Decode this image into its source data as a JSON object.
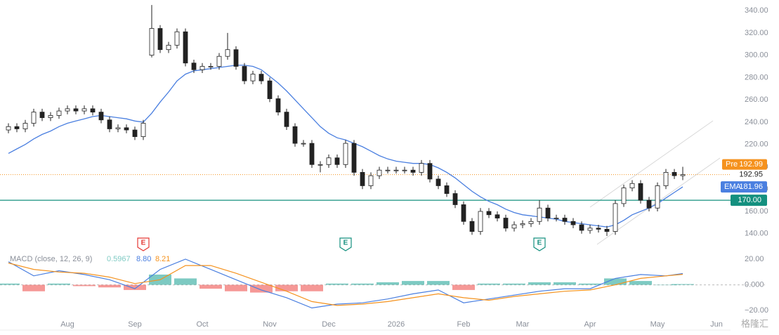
{
  "chart_data": [
    {
      "type": "candlestick",
      "x": [
        0,
        1,
        2,
        3,
        4,
        5,
        6,
        7,
        8,
        9,
        10,
        11,
        12,
        13,
        14,
        15,
        16,
        17,
        18,
        19,
        20,
        21,
        22,
        23,
        24,
        25,
        26,
        27,
        28,
        29,
        30,
        31,
        32,
        33,
        34,
        35,
        36,
        37,
        38,
        39,
        40,
        41,
        42,
        43,
        44,
        45,
        46,
        47,
        48,
        49,
        50,
        51,
        52,
        53,
        54,
        55,
        56,
        57,
        58,
        59,
        60,
        61,
        62,
        63,
        64,
        65,
        66,
        67,
        68,
        69,
        70,
        71,
        72,
        73,
        74,
        75,
        76,
        77,
        78,
        79,
        80
      ],
      "open": [
        233,
        236,
        234,
        239,
        249,
        244,
        246,
        250,
        252,
        250,
        252,
        249,
        242,
        234,
        235,
        233,
        227,
        300,
        324,
        305,
        309,
        321,
        293,
        287,
        290,
        290,
        299,
        305,
        290,
        277,
        283,
        277,
        261,
        249,
        236,
        221,
        221,
        202,
        202,
        208,
        202,
        221,
        195,
        183,
        192,
        197,
        197,
        197,
        197,
        195,
        203,
        189,
        183,
        176,
        166,
        151,
        142,
        160,
        157,
        154,
        145,
        148,
        149,
        151,
        163,
        154,
        154,
        151,
        148,
        143,
        145,
        144,
        142,
        167,
        181,
        185,
        170,
        163,
        183,
        195,
        192
      ],
      "high": [
        239,
        239,
        242,
        252,
        252,
        249,
        253,
        255,
        255,
        255,
        255,
        252,
        245,
        238,
        238,
        236,
        242,
        345,
        327,
        312,
        324,
        324,
        296,
        293,
        293,
        302,
        320,
        308,
        293,
        286,
        286,
        280,
        264,
        252,
        239,
        224,
        224,
        205,
        211,
        211,
        224,
        224,
        198,
        195,
        200,
        200,
        200,
        200,
        200,
        206,
        206,
        192,
        186,
        179,
        169,
        154,
        163,
        163,
        160,
        157,
        151,
        152,
        154,
        170,
        166,
        157,
        157,
        154,
        151,
        148,
        148,
        147,
        170,
        184,
        188,
        188,
        173,
        186,
        198,
        198,
        200
      ],
      "low": [
        230,
        231,
        231,
        236,
        241,
        241,
        243,
        247,
        247,
        247,
        246,
        239,
        231,
        231,
        230,
        224,
        224,
        298,
        302,
        302,
        306,
        290,
        284,
        284,
        287,
        287,
        296,
        287,
        274,
        274,
        274,
        258,
        246,
        233,
        218,
        218,
        199,
        195,
        199,
        199,
        199,
        192,
        180,
        180,
        189,
        194,
        194,
        194,
        192,
        192,
        186,
        180,
        173,
        163,
        148,
        139,
        139,
        154,
        151,
        142,
        142,
        145,
        146,
        148,
        151,
        151,
        148,
        145,
        140,
        140,
        141,
        138,
        139,
        164,
        178,
        167,
        160,
        160,
        180,
        189,
        188
      ],
      "close": [
        236,
        234,
        239,
        249,
        244,
        246,
        250,
        252,
        250,
        252,
        249,
        242,
        234,
        235,
        233,
        227,
        239,
        324,
        305,
        309,
        321,
        293,
        287,
        290,
        290,
        299,
        305,
        290,
        277,
        283,
        277,
        261,
        249,
        236,
        221,
        221,
        202,
        202,
        208,
        202,
        221,
        195,
        183,
        192,
        197,
        197,
        197,
        197,
        195,
        203,
        189,
        183,
        176,
        166,
        151,
        142,
        160,
        157,
        154,
        145,
        148,
        149,
        151,
        163,
        154,
        154,
        151,
        148,
        143,
        145,
        144,
        142,
        167,
        181,
        185,
        170,
        163,
        183,
        195,
        192,
        192.95
      ],
      "up_color": "#ffffff",
      "down_color": "#222222",
      "ema": {
        "name": "EMA",
        "color": "#4a7fe0",
        "values": [
          212,
          216,
          220,
          225,
          229,
          232,
          236,
          239,
          241,
          243,
          245,
          246,
          245,
          244,
          243,
          241,
          240,
          248,
          258,
          267,
          277,
          283,
          286,
          287,
          288,
          289,
          290,
          291,
          291,
          290,
          287,
          281,
          275,
          268,
          260,
          252,
          244,
          236,
          230,
          226,
          224,
          221,
          218,
          214,
          210,
          207,
          205,
          204,
          203,
          203,
          202,
          199,
          195,
          190,
          184,
          178,
          173,
          169,
          166,
          162,
          159,
          157,
          156,
          155,
          154,
          153,
          151,
          150,
          149,
          148,
          147,
          146,
          148,
          152,
          157,
          160,
          163,
          167,
          172,
          177,
          181.96
        ]
      },
      "pre": {
        "name": "Pre",
        "value": 192.99,
        "color": "#f5921e"
      },
      "level": {
        "value": 170,
        "label": "170.00",
        "color": "#14907f"
      },
      "events": [
        {
          "x": 16,
          "label": "E",
          "color": "#e53935"
        },
        {
          "x": 40,
          "label": "E",
          "color": "#14907f"
        },
        {
          "x": 63,
          "label": "E",
          "color": "#14907f"
        }
      ],
      "xlim": [
        -1,
        86.5
      ],
      "xticks": [
        {
          "value": 7,
          "label": "Aug"
        },
        {
          "value": 15,
          "label": "Sep"
        },
        {
          "value": 23,
          "label": "Oct"
        },
        {
          "value": 31,
          "label": "Nov"
        },
        {
          "value": 38,
          "label": "Dec"
        },
        {
          "value": 46,
          "label": "2026"
        },
        {
          "value": 54,
          "label": "Feb"
        },
        {
          "value": 61,
          "label": "Mar"
        },
        {
          "value": 69,
          "label": "Apr"
        },
        {
          "value": 77,
          "label": "May"
        },
        {
          "value": 84,
          "label": "Jun"
        }
      ],
      "ylim": [
        126,
        349.5
      ],
      "yticks": [
        {
          "value": 140,
          "label": "140.00"
        },
        {
          "value": 160,
          "label": "160.00"
        },
        {
          "value": 180,
          "label": "180.00"
        },
        {
          "value": 200,
          "label": "200.00"
        },
        {
          "value": 220,
          "label": "220.00"
        },
        {
          "value": 240,
          "label": "240.00"
        },
        {
          "value": 260,
          "label": "260.00"
        },
        {
          "value": 280,
          "label": "280.00"
        },
        {
          "value": 300,
          "label": "300.00"
        },
        {
          "value": 320,
          "label": "320.00"
        },
        {
          "value": 340,
          "label": "340.00"
        }
      ]
    },
    {
      "type": "macd",
      "title": "MACD (close, 12, 26, 9)",
      "legend_values": [
        "0.5967",
        "8.80",
        "8.21"
      ],
      "x": [
        0,
        3,
        6,
        9,
        12,
        15,
        18,
        21,
        24,
        27,
        30,
        33,
        36,
        39,
        42,
        45,
        48,
        51,
        54,
        57,
        60,
        63,
        66,
        69,
        72,
        75,
        78,
        80
      ],
      "macd": {
        "color": "#4a7fe0",
        "values": [
          18,
          7,
          11,
          8,
          4,
          -3,
          12,
          20,
          12,
          4,
          -4,
          -10,
          -18,
          -15,
          -14,
          -11,
          -7,
          -4,
          -14,
          -11,
          -8,
          -5,
          -3,
          -3,
          5,
          8,
          7,
          8.8
        ]
      },
      "signal": {
        "color": "#f5921e",
        "values": [
          17,
          12,
          10,
          9,
          6,
          1,
          4,
          15,
          15,
          9,
          2,
          -5,
          -13,
          -16,
          -15,
          -13,
          -10,
          -7,
          -10,
          -12,
          -9,
          -7,
          -5,
          -4,
          0,
          5,
          7,
          8.21
        ]
      },
      "hist": {
        "color": "#26a69a",
        "neg_color": "#ef5350",
        "values": [
          1,
          -5,
          1,
          -1,
          -2,
          -4,
          8,
          5,
          -3,
          -5,
          -6,
          -5,
          -5,
          1,
          1,
          2,
          3,
          3,
          -4,
          1,
          1,
          2,
          2,
          1,
          5,
          3,
          0,
          0.5967
        ]
      },
      "xlim": [
        -1,
        86.5
      ],
      "ylim": [
        -27,
        26
      ],
      "yticks": [
        {
          "value": 20,
          "label": "20.00"
        },
        {
          "value": 0,
          "label": "0.000"
        },
        {
          "value": -20,
          "label": "−20.00"
        }
      ]
    }
  ],
  "watermark": "格隆汇"
}
